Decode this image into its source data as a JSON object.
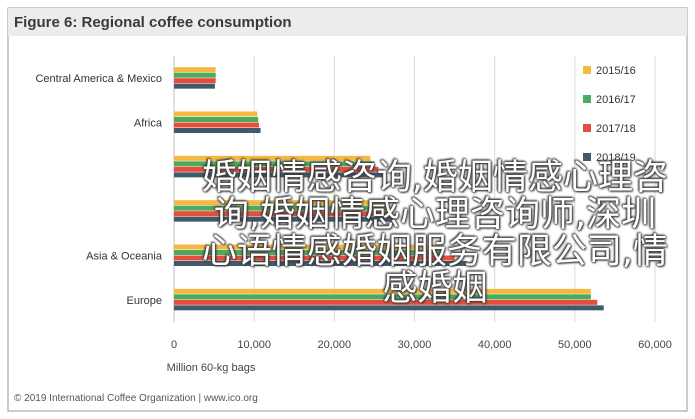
{
  "overlay_text": "婚姻情感咨询,婚姻情感心理咨询,婚姻情感心理咨询师,深圳心语情感婚姻服务有限公司,情感婚姻",
  "copyright": "© 2019 International Coffee Organization | www.ico.org",
  "chart_data": {
    "type": "bar",
    "orientation": "horizontal",
    "title": "Figure 6: Regional coffee consumption",
    "xlabel": "Million 60-kg bags",
    "ylabel": "",
    "xlim": [
      0,
      60000
    ],
    "xticks": [
      0,
      10000,
      20000,
      30000,
      40000,
      50000,
      60000
    ],
    "xtick_labels": [
      "0",
      "10,000",
      "20,000",
      "30,000",
      "40,000",
      "50,000",
      "60,000"
    ],
    "grid": true,
    "legend_position": "top-right",
    "categories": [
      "Central America & Mexico",
      "Africa",
      "",
      "",
      "Asia & Oceania",
      "Europe"
    ],
    "series": [
      {
        "name": "2015/16",
        "color": "#f5b942",
        "values": [
          5200,
          10400,
          24500,
          26500,
          33000,
          52000
        ]
      },
      {
        "name": "2016/17",
        "color": "#4aab5e",
        "values": [
          5200,
          10500,
          25000,
          26700,
          33500,
          52000
        ]
      },
      {
        "name": "2017/18",
        "color": "#e84d3c",
        "values": [
          5200,
          10600,
          25500,
          27000,
          35000,
          52800
        ]
      },
      {
        "name": "2018/19",
        "color": "#3f5a6b",
        "values": [
          5100,
          10800,
          26000,
          27500,
          36500,
          53600
        ]
      }
    ]
  }
}
